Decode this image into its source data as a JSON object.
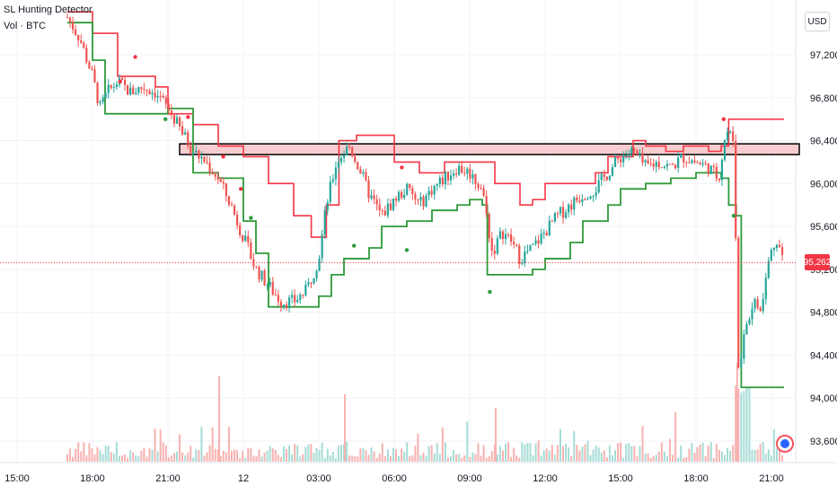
{
  "legend": {
    "indicator": "SL Hunting Detector",
    "volume": "Vol · BTC"
  },
  "price_scale": {
    "currency": "USD",
    "last_price": "95,262"
  },
  "colors": {
    "up": "#26a69a",
    "down": "#ef5350",
    "upper_band": "#f23645",
    "lower_band": "#2e9a3a",
    "zone_fill": "#f8cdd0",
    "zone_border": "#000000",
    "last_price_line": "#f23645"
  },
  "chart_data": {
    "type": "candlestick",
    "title": "",
    "xlabel": "",
    "ylabel": "",
    "ylim": [
      93450,
      97550
    ],
    "y_ticks": [
      "97,200",
      "96,800",
      "96,400",
      "96,000",
      "95,600",
      "95,200",
      "94,800",
      "94,400",
      "94,000",
      "93,600"
    ],
    "y_tick_values": [
      97200,
      96800,
      96400,
      96000,
      95600,
      95200,
      94800,
      94400,
      94000,
      93600
    ],
    "x_ticks": [
      "15:00",
      "18:00",
      "21:00",
      "12",
      "03:00",
      "06:00",
      "09:00",
      "12:00",
      "15:00",
      "18:00",
      "21:00"
    ],
    "x_tick_hours": [
      0,
      3,
      6,
      9,
      12,
      15,
      18,
      21,
      24,
      27,
      30
    ],
    "resistance_zone": [
      96270,
      96370
    ],
    "last_price": 95262,
    "series": [
      {
        "name": "",
        "kind": "price_path",
        "points": [
          [
            0,
            97600
          ],
          [
            2.0,
            97550
          ],
          [
            2.5,
            97350
          ],
          [
            3.0,
            97000
          ],
          [
            3.3,
            96700
          ],
          [
            3.6,
            96850
          ],
          [
            4.0,
            96950
          ],
          [
            4.5,
            96850
          ],
          [
            5.0,
            96900
          ],
          [
            5.5,
            96850
          ],
          [
            6.0,
            96700
          ],
          [
            6.5,
            96500
          ],
          [
            7.0,
            96300
          ],
          [
            7.5,
            96200
          ],
          [
            8.0,
            96050
          ],
          [
            8.5,
            95800
          ],
          [
            9.0,
            95500
          ],
          [
            9.5,
            95200
          ],
          [
            10.0,
            95050
          ],
          [
            10.5,
            94900
          ],
          [
            11.0,
            94900
          ],
          [
            11.5,
            95000
          ],
          [
            12.0,
            95300
          ],
          [
            12.3,
            95800
          ],
          [
            12.7,
            96200
          ],
          [
            13.2,
            96350
          ],
          [
            13.6,
            96150
          ],
          [
            14.0,
            95900
          ],
          [
            14.5,
            95700
          ],
          [
            15.0,
            95850
          ],
          [
            15.5,
            95950
          ],
          [
            16.0,
            95800
          ],
          [
            16.5,
            95950
          ],
          [
            17.0,
            96050
          ],
          [
            17.5,
            96150
          ],
          [
            18.0,
            96100
          ],
          [
            18.5,
            95950
          ],
          [
            18.9,
            95350
          ],
          [
            19.3,
            95550
          ],
          [
            19.7,
            95450
          ],
          [
            20.0,
            95300
          ],
          [
            20.5,
            95400
          ],
          [
            21.0,
            95550
          ],
          [
            21.5,
            95700
          ],
          [
            22.0,
            95800
          ],
          [
            22.5,
            95900
          ],
          [
            23.0,
            95950
          ],
          [
            23.5,
            96100
          ],
          [
            24.0,
            96250
          ],
          [
            24.5,
            96300
          ],
          [
            25.0,
            96150
          ],
          [
            25.5,
            96200
          ],
          [
            26.0,
            96150
          ],
          [
            26.5,
            96250
          ],
          [
            27.0,
            96200
          ],
          [
            27.5,
            96150
          ],
          [
            27.9,
            96050
          ],
          [
            28.2,
            96500
          ],
          [
            28.5,
            96400
          ],
          [
            28.7,
            94200
          ],
          [
            29.0,
            94700
          ],
          [
            29.3,
            94900
          ],
          [
            29.6,
            94800
          ],
          [
            29.9,
            95300
          ],
          [
            30.2,
            95500
          ],
          [
            30.5,
            95262
          ]
        ]
      },
      {
        "name": "",
        "kind": "upper_band",
        "points": [
          [
            2.0,
            97600
          ],
          [
            3.0,
            97400
          ],
          [
            4.0,
            97000
          ],
          [
            5.5,
            96900
          ],
          [
            6.0,
            96650
          ],
          [
            7.0,
            96550
          ],
          [
            8.0,
            96350
          ],
          [
            9.0,
            96250
          ],
          [
            10.0,
            96000
          ],
          [
            11.0,
            95700
          ],
          [
            11.7,
            95500
          ],
          [
            12.3,
            95800
          ],
          [
            12.8,
            96400
          ],
          [
            13.5,
            96450
          ],
          [
            14.5,
            96450
          ],
          [
            15.0,
            96200
          ],
          [
            16.0,
            96100
          ],
          [
            17.0,
            96200
          ],
          [
            18.5,
            96200
          ],
          [
            19.0,
            96000
          ],
          [
            20.0,
            95800
          ],
          [
            20.5,
            95850
          ],
          [
            21.0,
            96000
          ],
          [
            22.0,
            96000
          ],
          [
            23.0,
            96100
          ],
          [
            23.5,
            96250
          ],
          [
            24.5,
            96400
          ],
          [
            25.0,
            96350
          ],
          [
            25.8,
            96300
          ],
          [
            26.5,
            96350
          ],
          [
            27.5,
            96300
          ],
          [
            28.0,
            96350
          ],
          [
            28.3,
            96600
          ],
          [
            30.5,
            96600
          ]
        ]
      },
      {
        "name": "",
        "kind": "lower_band",
        "points": [
          [
            2.0,
            97500
          ],
          [
            3.0,
            97150
          ],
          [
            3.5,
            96650
          ],
          [
            5.0,
            96650
          ],
          [
            6.0,
            96700
          ],
          [
            7.0,
            96100
          ],
          [
            8.0,
            96050
          ],
          [
            9.0,
            95650
          ],
          [
            9.5,
            95350
          ],
          [
            10.0,
            94850
          ],
          [
            11.0,
            94850
          ],
          [
            12.0,
            94950
          ],
          [
            12.5,
            95150
          ],
          [
            13.0,
            95300
          ],
          [
            14.0,
            95400
          ],
          [
            14.5,
            95600
          ],
          [
            15.5,
            95650
          ],
          [
            16.5,
            95750
          ],
          [
            17.5,
            95800
          ],
          [
            18.0,
            95850
          ],
          [
            18.5,
            95800
          ],
          [
            18.7,
            95150
          ],
          [
            19.5,
            95150
          ],
          [
            20.5,
            95200
          ],
          [
            21.0,
            95300
          ],
          [
            22.0,
            95450
          ],
          [
            22.5,
            95650
          ],
          [
            23.5,
            95800
          ],
          [
            24.0,
            95950
          ],
          [
            25.0,
            96000
          ],
          [
            26.0,
            96050
          ],
          [
            27.0,
            96100
          ],
          [
            28.0,
            96050
          ],
          [
            28.3,
            95800
          ],
          [
            28.6,
            95700
          ],
          [
            28.8,
            94100
          ],
          [
            30.5,
            94100
          ]
        ]
      }
    ]
  }
}
